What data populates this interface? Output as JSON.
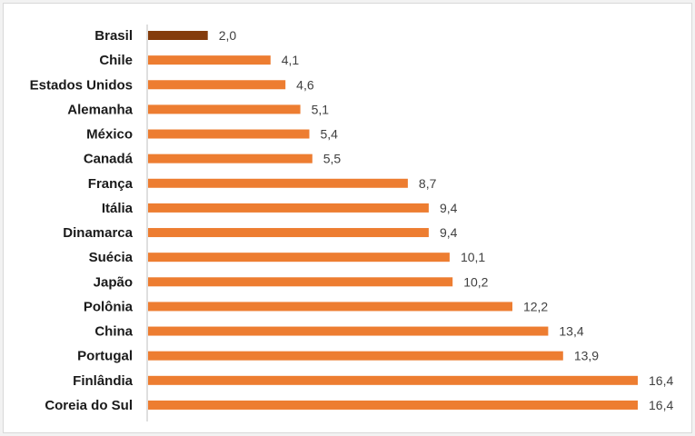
{
  "chart_data": {
    "type": "bar",
    "orientation": "horizontal",
    "title": "",
    "xlabel": "",
    "ylabel": "",
    "xlim": [
      0,
      16.4
    ],
    "grid": false,
    "legend": "none",
    "categories": [
      "Brasil",
      "Chile",
      "Estados Unidos",
      "Alemanha",
      "México",
      "Canadá",
      "França",
      "Itália",
      "Dinamarca",
      "Suécia",
      "Japão",
      "Polônia",
      "China",
      "Portugal",
      "Finlândia",
      "Coreia do Sul"
    ],
    "values": [
      2.0,
      4.1,
      4.6,
      5.1,
      5.4,
      5.5,
      8.7,
      9.4,
      9.4,
      10.1,
      10.2,
      12.2,
      13.4,
      13.9,
      16.4,
      16.4
    ],
    "value_labels": [
      "2,0",
      "4,1",
      "4,6",
      "5,1",
      "5,4",
      "5,5",
      "8,7",
      "9,4",
      "9,4",
      "10,1",
      "10,2",
      "12,2",
      "13,4",
      "13,9",
      "16,4",
      "16,4"
    ],
    "colors": {
      "default": "#ed7d31",
      "highlight": "#843c0c",
      "axis": "#bfbfbf",
      "category_text": "#1a1a1a",
      "value_text": "#404040"
    },
    "highlight_category": "Brasil"
  }
}
